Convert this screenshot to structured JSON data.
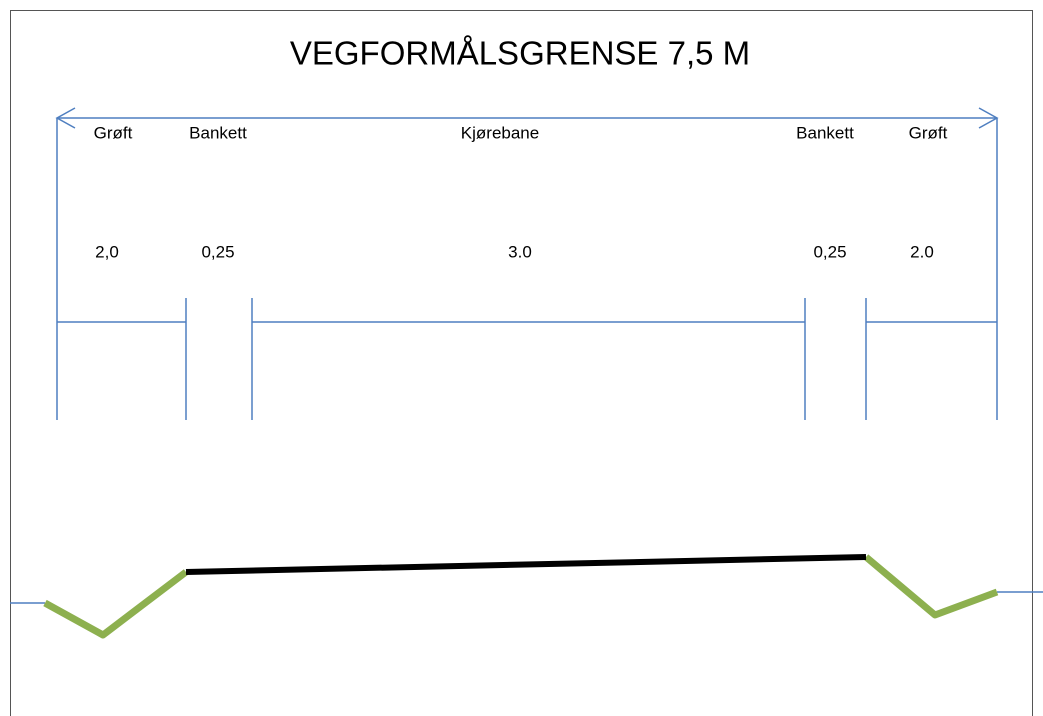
{
  "title": "VEGFORMÅLSGRENSE 7,5 M",
  "columns": [
    {
      "label": "Grøft",
      "value": "2,0"
    },
    {
      "label": "Bankett",
      "value": "0,25"
    },
    {
      "label": "Kjørebane",
      "value": "3.0"
    },
    {
      "label": "Bankett",
      "value": "0,25"
    },
    {
      "label": "Grøft",
      "value": "2.0"
    }
  ]
}
